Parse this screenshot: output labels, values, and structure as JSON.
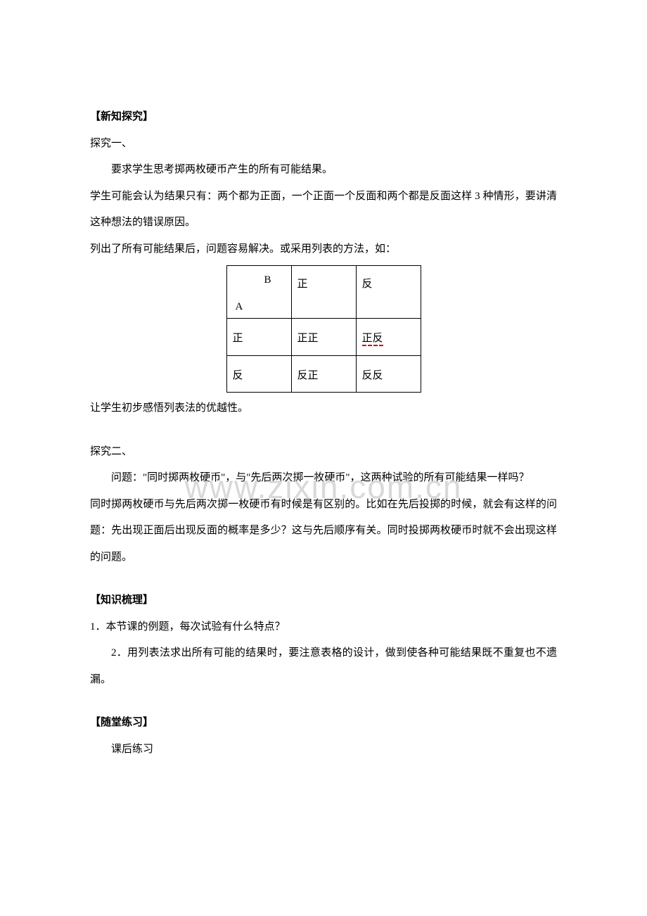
{
  "watermark": "www.zixin.com.cn",
  "headings": {
    "h1": "【新知探究】",
    "h2": "【知识梳理】",
    "h3": "【随堂练习】"
  },
  "explore1": {
    "title": "探究一、",
    "p1": "要求学生思考掷两枚硬币产生的所有可能结果。",
    "p2": "学生可能会认为结果只有：两个都为正面，一个正面一个反面和两个都是反面这样 3 种情形，要讲清这种想法的错误原因。",
    "p3": "列出了所有可能结果后，问题容易解决。或采用列表的方法，如：",
    "p4": "让学生初步感悟列表法的优越性。"
  },
  "table": {
    "corner_b": "B",
    "corner_a": "A",
    "col1": "正",
    "col2": "反",
    "row1": "正",
    "row2": "反",
    "r1c1": "正正",
    "r1c2": "正反",
    "r2c1": "反正",
    "r2c2": "反反"
  },
  "explore2": {
    "title": "探究二、",
    "p1": "问题：\"同时掷两枚硬币\"，与\"先后两次掷一枚硬币\"，这两种试验的所有可能结果一样吗？",
    "p2": "同时掷两枚硬币与先后两次掷一枚硬币有时候是有区别的。比如在先后投掷的时候，就会有这样的问题：先出现正面后出现反面的概率是多少？这与先后顺序有关。同时投掷两枚硬币时就不会出现这样的问题。"
  },
  "summary": {
    "p1": "1．本节课的例题，每次试验有什么特点？",
    "p2": "2．用列表法求出所有可能的结果时，要注意表格的设计，做到使各种可能结果既不重复也不遗漏。"
  },
  "practice": {
    "p1": "课后练习"
  },
  "colors": {
    "text": "#000000",
    "background": "#ffffff",
    "watermark": "#d9d9d9",
    "red_mark": "#cc0000"
  }
}
